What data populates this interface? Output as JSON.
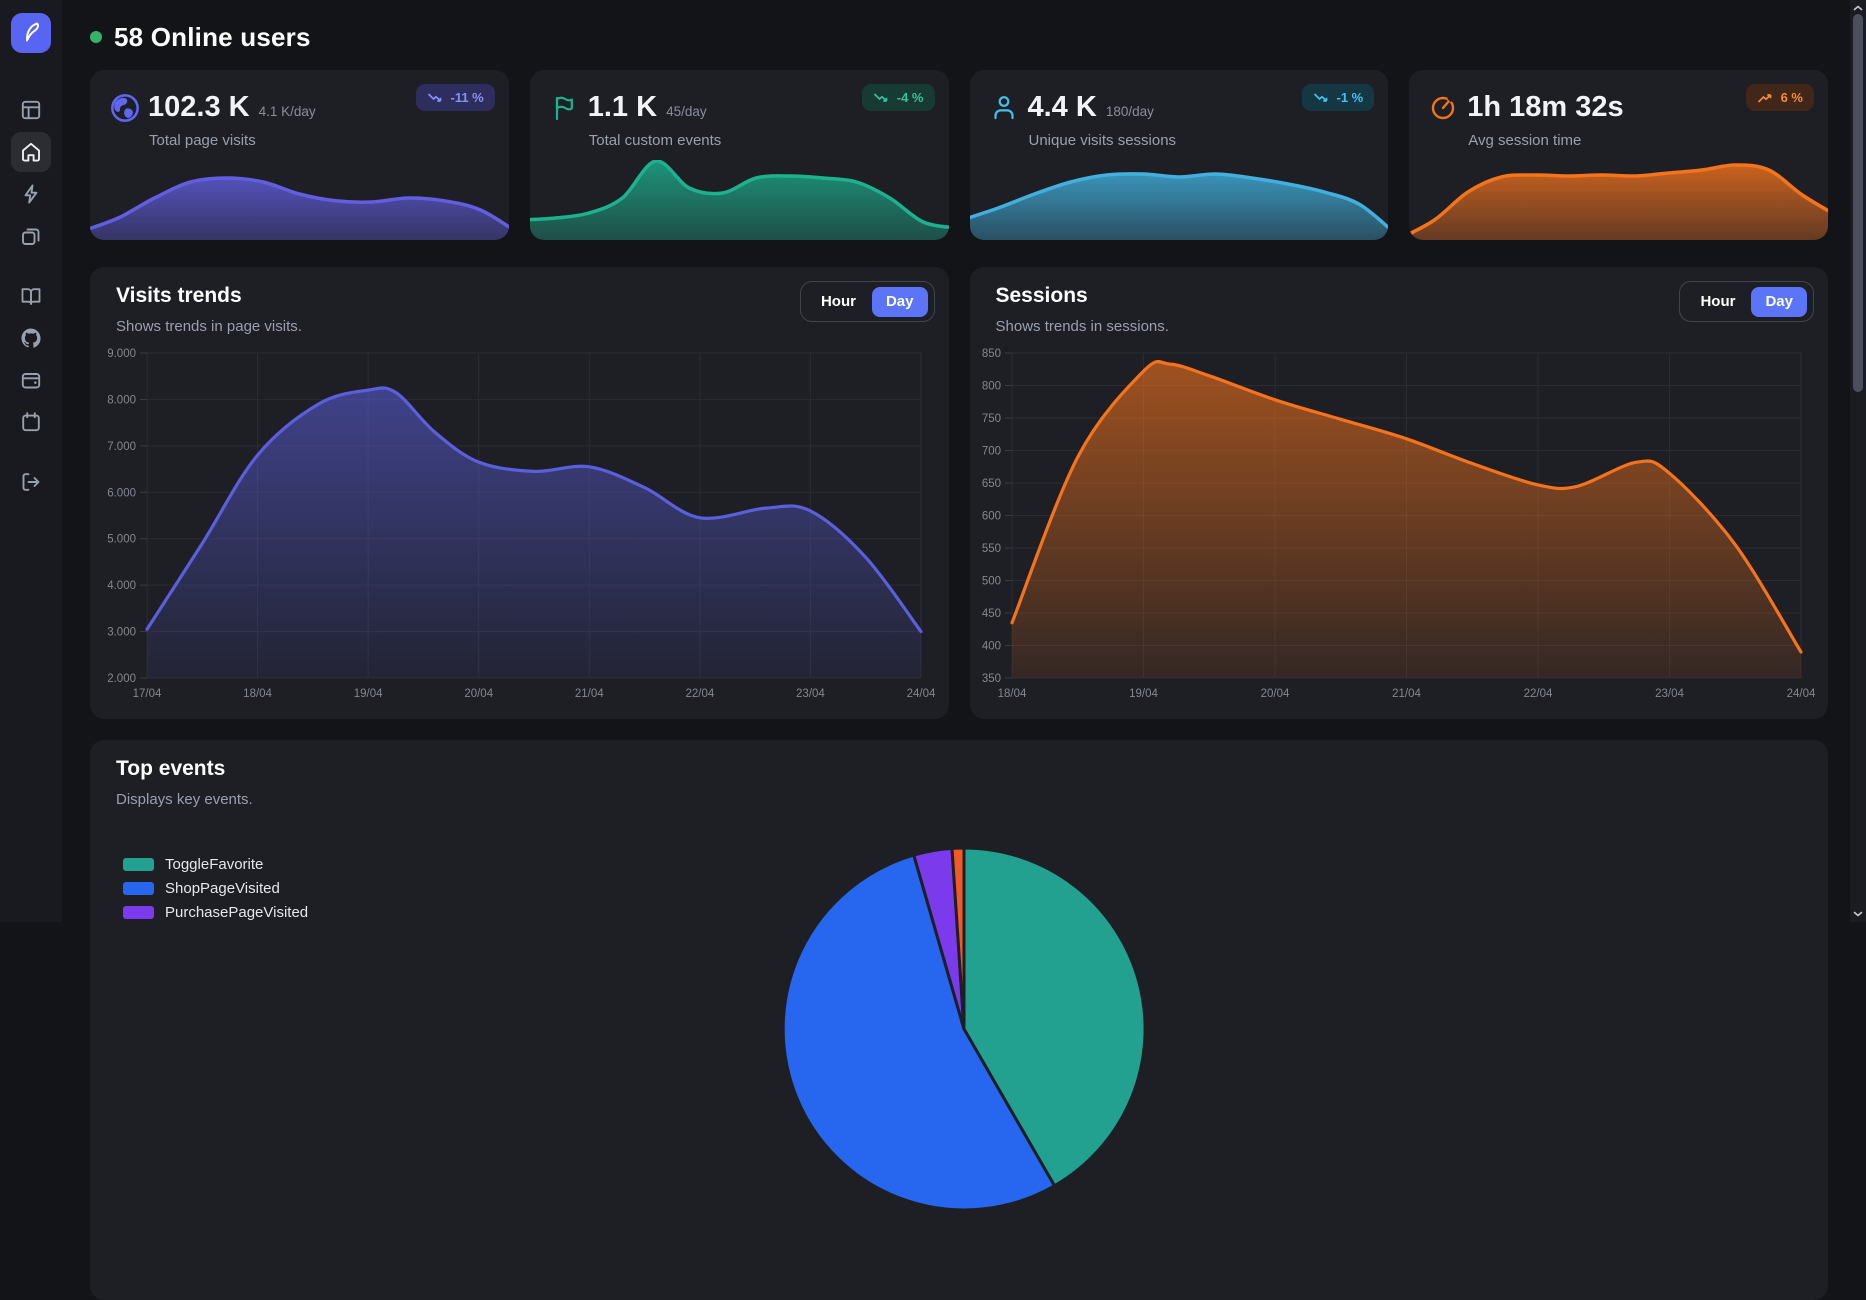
{
  "header": {
    "online_label": "58 Online users",
    "dot_color": "#35b267"
  },
  "sidebar": {
    "items": [
      "logo",
      "panels",
      "home",
      "zap",
      "copy",
      "book",
      "github",
      "wallet",
      "calendar",
      "logout"
    ],
    "active": "home",
    "logo_bg": "#5865f2"
  },
  "stats": [
    {
      "icon": "globe",
      "accent": "#5f66f2",
      "value": "102.3 K",
      "rate": "4.1 K/day",
      "label": "Total page visits",
      "badge": {
        "text": "-11 %",
        "direction": "down",
        "bg": "#2d2e5d",
        "fg": "#8a8ff8"
      },
      "line": "#625ee0",
      "spark": [
        0.11,
        0.275,
        0.525,
        0.725,
        0.775,
        0.725,
        0.575,
        0.49,
        0.475,
        0.525,
        0.49,
        0.375,
        0.1
      ]
    },
    {
      "icon": "flag",
      "accent": "#19b394",
      "value": "1.1 K",
      "rate": "45/day",
      "label": "Total custom events",
      "badge": {
        "text": "-4 %",
        "direction": "down",
        "bg": "#173b32",
        "fg": "#35c39e"
      },
      "line": "#1db28f",
      "spark": [
        0.25,
        0.275,
        0.3375,
        0.525,
        0.9875,
        0.65,
        0.5875,
        0.775,
        0.8,
        0.775,
        0.725,
        0.525,
        0.225,
        0.15
      ]
    },
    {
      "icon": "user",
      "accent": "#45c0ee",
      "value": "4.4 K",
      "rate": "180/day",
      "label": "Unique visits sessions",
      "badge": {
        "text": "-1 %",
        "direction": "down",
        "bg": "#153744",
        "fg": "#43c3f2"
      },
      "line": "#41b0de",
      "spark": [
        0.25,
        0.4,
        0.575,
        0.725,
        0.8125,
        0.825,
        0.7875,
        0.825,
        0.775,
        0.7,
        0.6,
        0.4375,
        0.0625
      ]
    },
    {
      "icon": "timer",
      "accent": "#f4731d",
      "value": "1h 18m 32s",
      "rate": "",
      "label": "Avg session time",
      "badge": {
        "text": "6 %",
        "direction": "up",
        "bg": "#41261a",
        "fg": "#fa8a3c"
      },
      "line": "#f4731d",
      "spark": [
        0.025,
        0.25,
        0.6,
        0.7875,
        0.8125,
        0.8,
        0.8125,
        0.8,
        0.8375,
        0.875,
        0.9375,
        0.875,
        0.5625,
        0.3125
      ]
    }
  ],
  "chart_data": [
    {
      "id": "visits",
      "type": "area",
      "title": "Visits trends",
      "subtitle": "Shows trends in page visits.",
      "toggle": {
        "options": [
          "Hour",
          "Day"
        ],
        "active": "Day"
      },
      "color": "#5b5fdd",
      "fill_top": 0.55,
      "fill_bottom": 0.08,
      "ylim": [
        2000,
        9000
      ],
      "y_ticks": [
        {
          "label": "9.000",
          "value": 9000
        },
        {
          "label": "8.000",
          "value": 8000
        },
        {
          "label": "7.000",
          "value": 7000
        },
        {
          "label": "6.000",
          "value": 6000
        },
        {
          "label": "5.000",
          "value": 5000
        },
        {
          "label": "4.000",
          "value": 4000
        },
        {
          "label": "3.000",
          "value": 3000
        },
        {
          "label": "2.000",
          "value": 2000
        }
      ],
      "x_labels": [
        "17/04",
        "18/04",
        "19/04",
        "20/04",
        "21/04",
        "22/04",
        "23/04",
        "24/04"
      ],
      "points": [
        [
          0,
          3050
        ],
        [
          0.5,
          4900
        ],
        [
          1,
          6800
        ],
        [
          1.55,
          7900
        ],
        [
          2,
          8200
        ],
        [
          2.25,
          8150
        ],
        [
          2.6,
          7300
        ],
        [
          3,
          6650
        ],
        [
          3.5,
          6450
        ],
        [
          4,
          6550
        ],
        [
          4.5,
          6100
        ],
        [
          5,
          5450
        ],
        [
          5.6,
          5660
        ],
        [
          6,
          5600
        ],
        [
          6.5,
          4600
        ],
        [
          7,
          3000
        ]
      ],
      "margins": {
        "l": 57,
        "t": 86,
        "r": 28,
        "b": 41
      }
    },
    {
      "id": "sessions",
      "type": "area",
      "title": "Sessions",
      "subtitle": "Shows trends in sessions.",
      "toggle": {
        "options": [
          "Hour",
          "Day"
        ],
        "active": "Day"
      },
      "color": "#f5731c",
      "fill_top": 0.6,
      "fill_bottom": 0.1,
      "ylim": [
        350,
        850
      ],
      "y_ticks": [
        {
          "label": "850",
          "value": 850
        },
        {
          "label": "800",
          "value": 800
        },
        {
          "label": "750",
          "value": 750
        },
        {
          "label": "700",
          "value": 700
        },
        {
          "label": "650",
          "value": 650
        },
        {
          "label": "600",
          "value": 600
        },
        {
          "label": "550",
          "value": 550
        },
        {
          "label": "500",
          "value": 500
        },
        {
          "label": "450",
          "value": 450
        },
        {
          "label": "400",
          "value": 400
        },
        {
          "label": "350",
          "value": 350
        }
      ],
      "x_labels": [
        "18/04",
        "19/04",
        "20/04",
        "21/04",
        "22/04",
        "23/04",
        "24/04"
      ],
      "points": [
        [
          0,
          435
        ],
        [
          0.5,
          690
        ],
        [
          1,
          822
        ],
        [
          1.2,
          833
        ],
        [
          1.5,
          815
        ],
        [
          2,
          778
        ],
        [
          2.5,
          748
        ],
        [
          3,
          718
        ],
        [
          3.5,
          680
        ],
        [
          4,
          647
        ],
        [
          4.3,
          645
        ],
        [
          4.75,
          682
        ],
        [
          5,
          665
        ],
        [
          5.5,
          555
        ],
        [
          6,
          390
        ]
      ],
      "margins": {
        "l": 42,
        "t": 86,
        "r": 28,
        "b": 41
      }
    },
    {
      "id": "top-events",
      "type": "pie",
      "title": "Top events",
      "subtitle": "Displays key events.",
      "slices": [
        {
          "label": "ToggleFavorite",
          "color": "#22a090",
          "start": 0,
          "end": 150
        },
        {
          "label": "ShopPageVisited",
          "color": "#2766ee",
          "start": 150,
          "end": 343.9
        },
        {
          "label": "PurchasePageVisited",
          "color": "#7c3aed",
          "start": 343.9,
          "end": 356.2
        },
        {
          "label": "",
          "color": "#f15a22",
          "start": 356.2,
          "end": 360
        }
      ]
    }
  ]
}
